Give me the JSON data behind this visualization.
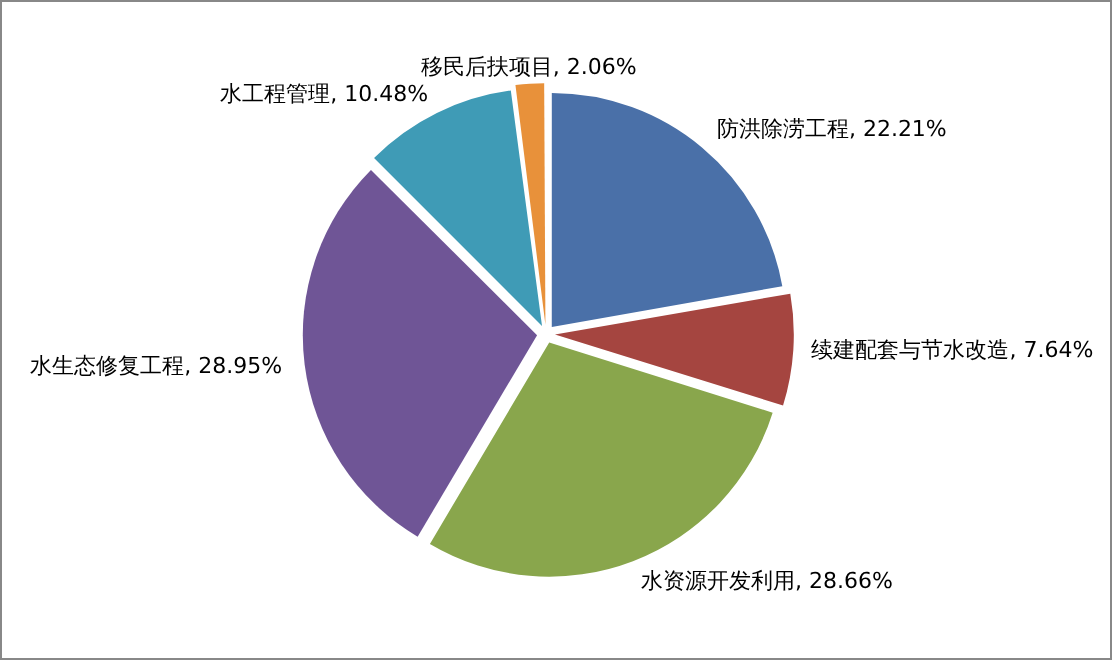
{
  "chart_data": {
    "type": "pie",
    "categories": [
      "防洪除涝工程",
      "续建配套与节水改造",
      "水资源开发利用",
      "水生态修复工程",
      "水工程管理",
      "移民后扶项目"
    ],
    "values": [
      22.21,
      7.64,
      28.66,
      28.95,
      10.48,
      2.06
    ],
    "colors": [
      "#4a70a8",
      "#a54540",
      "#89a64c",
      "#6f5596",
      "#3f9bb6",
      "#e8913a"
    ],
    "value_labels": [
      "22.21%",
      "7.64%",
      "28.66%",
      "28.95%",
      "10.48%",
      "2.06%"
    ]
  }
}
